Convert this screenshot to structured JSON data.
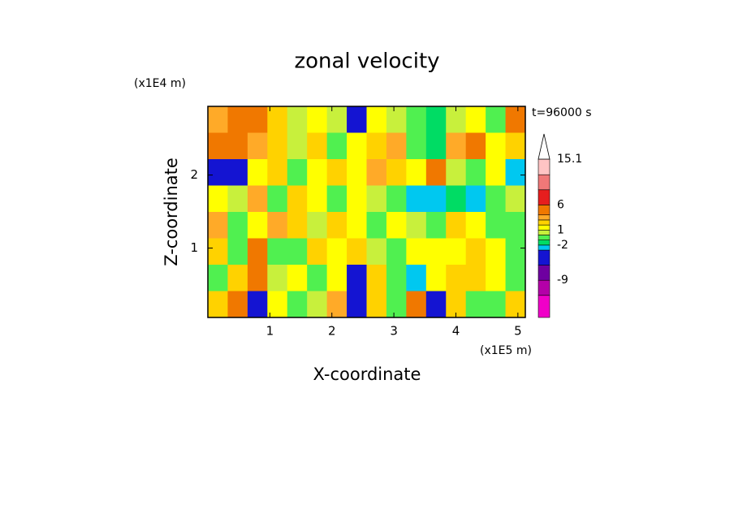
{
  "chart_data": {
    "type": "contour",
    "title": "zonal velocity",
    "annotation": "t=96000 s",
    "xlabel": "X-coordinate",
    "ylabel": "Z-coordinate",
    "x_unit_label": "(x1E5 m)",
    "y_unit_label": "(x1E4 m)",
    "xlim": [
      0,
      5.12
    ],
    "ylim": [
      0.05,
      2.94
    ],
    "xticks": [
      1,
      2,
      3,
      4,
      5
    ],
    "yticks": [
      1,
      2
    ],
    "z": [
      [
        3,
        5,
        4,
        2,
        0,
        1,
        0,
        -4,
        1,
        0,
        -1,
        -2,
        0,
        1,
        -1,
        4
      ],
      [
        5,
        4,
        3,
        2,
        0,
        2,
        -1,
        1,
        2,
        3,
        -1,
        -2,
        3,
        4,
        1,
        2
      ],
      [
        -4,
        -5,
        1,
        2,
        -1,
        1,
        2,
        1,
        3,
        2,
        1,
        4,
        0,
        -1,
        1,
        -3
      ],
      [
        1,
        0,
        3,
        -1,
        2,
        1,
        -1,
        1,
        0,
        -1,
        -3,
        -3,
        -2,
        -3,
        -1,
        0
      ],
      [
        3,
        -1,
        1,
        3,
        2,
        0,
        2,
        1,
        -1,
        1,
        0,
        -1,
        2,
        1,
        -1,
        -1
      ],
      [
        2,
        -1,
        4,
        -1,
        -1,
        2,
        1,
        2,
        0,
        -1,
        1,
        1,
        1,
        2,
        1,
        -1
      ],
      [
        -1,
        2,
        5,
        0,
        1,
        -1,
        1,
        -5,
        2,
        -1,
        -3,
        1,
        2,
        2,
        1,
        -1
      ],
      [
        2,
        5,
        -4,
        1,
        -1,
        0,
        3,
        -5,
        2,
        -1,
        4,
        -6,
        2,
        -1,
        -1,
        2
      ]
    ],
    "clim": [
      -16.4,
      15.1
    ],
    "levels": [
      -12,
      -9,
      -6,
      -3,
      -2,
      -1,
      0,
      1,
      2,
      3,
      4,
      6,
      9,
      12,
      15.1
    ],
    "colors": [
      "#f000c8",
      "#b400a8",
      "#6e00a0",
      "#1414d2",
      "#00c8f0",
      "#00dc64",
      "#50f050",
      "#c8f03c",
      "#ffff00",
      "#ffd200",
      "#ffaa28",
      "#f07800",
      "#e61e1e",
      "#f07878",
      "#ffc4c4",
      "#ffffff"
    ],
    "colorbar_ticks": [
      15.1,
      6,
      1,
      -2,
      -9
    ]
  }
}
